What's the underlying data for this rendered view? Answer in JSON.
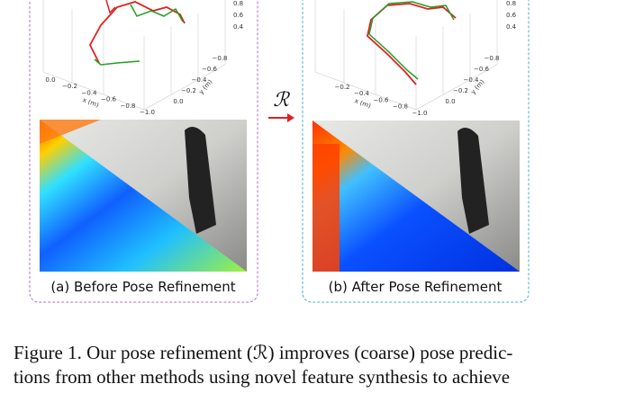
{
  "figure": {
    "operator": "ℛ",
    "panels": [
      {
        "caption": "(a) Before Pose Refinement",
        "x_ticks": [
          "0.0",
          "−0.2",
          "−0.4",
          "−0.6",
          "−0.8",
          "−1.0"
        ],
        "x_label": "x (m)",
        "y_ticks": [
          "0.0",
          "−0.2",
          "−0.4",
          "−0.6",
          "−0.8"
        ],
        "y_label": "y (m)",
        "z_ticks": [
          "0.8",
          "0.6",
          "0.4"
        ]
      },
      {
        "caption": "(b) After Pose Refinement",
        "x_ticks": [
          "−0.2",
          "−0.4",
          "−0.6",
          "−0.8",
          "−1.0"
        ],
        "x_label": "x (m)",
        "y_ticks": [
          "0.0",
          "−0.2",
          "−0.4",
          "−0.6",
          "−0.8"
        ],
        "y_label": "y (m)",
        "z_ticks": [
          "0.8",
          "0.6",
          "0.4"
        ]
      }
    ],
    "caption_lines": [
      "Figure 1. Our pose refinement (ℛ) improves (coarse) pose predic-",
      "tions from other methods using novel feature synthesis to achieve"
    ]
  }
}
